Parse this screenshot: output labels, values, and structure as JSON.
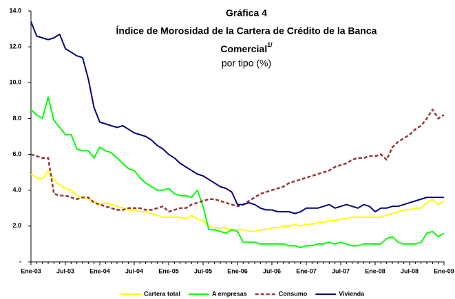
{
  "chart_data": {
    "type": "line",
    "title": "Gráfica 4",
    "title_lines": [
      "Índice de Morosidad de la Cartera de Crédito de la Banca",
      "Comercial"
    ],
    "title_note": "1/",
    "subtitle": "por tipo (%)",
    "categories": [
      "Ene-03",
      null,
      null,
      null,
      null,
      null,
      "Jul-03",
      null,
      null,
      null,
      null,
      null,
      "Ene-04",
      null,
      null,
      null,
      null,
      null,
      "Jul-04",
      null,
      null,
      null,
      null,
      null,
      "Ene-05",
      null,
      null,
      null,
      null,
      null,
      "Jul-05",
      null,
      null,
      null,
      null,
      null,
      "Ene-06",
      null,
      null,
      null,
      null,
      null,
      "Jul-06",
      null,
      null,
      null,
      null,
      null,
      "Ene-07",
      null,
      null,
      null,
      null,
      null,
      "Jul-07",
      null,
      null,
      null,
      null,
      null,
      "Ene-08",
      null,
      null,
      null,
      null,
      null,
      "Jul-08",
      null,
      null,
      null,
      null,
      null,
      "Ene-09"
    ],
    "series": [
      {
        "name": "Cartera total",
        "color": "#ffff00",
        "dash": false,
        "values": [
          4.9,
          4.7,
          4.6,
          5.1,
          4.6,
          4.3,
          4.1,
          4.0,
          3.7,
          3.6,
          3.5,
          3.4,
          3.2,
          3.3,
          3.2,
          3.1,
          3.0,
          2.9,
          2.9,
          2.8,
          2.8,
          2.7,
          2.6,
          2.5,
          2.5,
          2.5,
          2.5,
          2.4,
          2.6,
          2.4,
          2.3,
          2.0,
          1.9,
          1.9,
          1.9,
          1.8,
          1.8,
          1.8,
          1.7,
          1.7,
          1.8,
          1.8,
          1.9,
          1.9,
          2.0,
          2.0,
          2.1,
          2.0,
          2.1,
          2.1,
          2.2,
          2.2,
          2.3,
          2.3,
          2.4,
          2.4,
          2.5,
          2.5,
          2.5,
          2.5,
          2.5,
          2.5,
          2.6,
          2.7,
          2.8,
          2.9,
          2.9,
          3.0,
          3.0,
          3.3,
          3.5,
          3.2,
          3.4
        ]
      },
      {
        "name": "A empresas",
        "color": "#00ff00",
        "dash": false,
        "values": [
          8.5,
          8.2,
          8.0,
          9.2,
          7.9,
          7.5,
          7.1,
          7.1,
          6.3,
          6.2,
          6.2,
          5.8,
          6.4,
          6.2,
          6.1,
          5.8,
          5.5,
          5.2,
          5.1,
          4.7,
          4.4,
          4.2,
          4.0,
          4.0,
          4.1,
          3.8,
          3.7,
          3.7,
          3.6,
          4.0,
          3.1,
          1.8,
          1.8,
          1.7,
          1.6,
          1.8,
          1.7,
          1.1,
          1.1,
          1.1,
          1.0,
          1.0,
          1.0,
          1.0,
          1.0,
          0.9,
          0.9,
          0.8,
          0.9,
          0.9,
          1.0,
          1.0,
          1.1,
          1.0,
          1.1,
          1.0,
          0.9,
          0.9,
          1.0,
          1.0,
          1.0,
          1.0,
          1.3,
          1.4,
          1.1,
          1.0,
          1.0,
          1.0,
          1.1,
          1.6,
          1.7,
          1.4,
          1.6
        ]
      },
      {
        "name": "Consumo",
        "color": "#993333",
        "dash": true,
        "values": [
          6.0,
          5.9,
          5.8,
          5.8,
          3.8,
          3.7,
          3.7,
          3.6,
          3.5,
          3.6,
          3.6,
          3.3,
          3.2,
          3.1,
          3.0,
          2.9,
          2.9,
          3.0,
          3.0,
          3.0,
          2.9,
          2.9,
          3.0,
          3.1,
          2.8,
          2.9,
          3.0,
          3.0,
          3.2,
          3.3,
          3.4,
          3.5,
          3.5,
          3.4,
          3.3,
          3.2,
          3.1,
          3.2,
          3.4,
          3.6,
          3.8,
          3.9,
          4.0,
          4.1,
          4.2,
          4.4,
          4.5,
          4.6,
          4.7,
          4.8,
          4.9,
          5.0,
          5.1,
          5.3,
          5.4,
          5.5,
          5.7,
          5.8,
          5.8,
          5.9,
          5.9,
          6.0,
          5.7,
          6.4,
          6.7,
          6.9,
          7.1,
          7.4,
          7.6,
          8.0,
          8.5,
          8.0,
          8.2
        ]
      },
      {
        "name": "Vivienda",
        "color": "#000080",
        "dash": false,
        "values": [
          13.4,
          12.6,
          12.5,
          12.4,
          12.5,
          12.7,
          11.9,
          11.7,
          11.5,
          11.4,
          10.2,
          8.6,
          7.8,
          7.7,
          7.6,
          7.5,
          7.6,
          7.4,
          7.2,
          7.1,
          7.0,
          6.8,
          6.5,
          6.3,
          6.0,
          5.8,
          5.5,
          5.3,
          5.1,
          4.9,
          4.8,
          4.6,
          4.4,
          4.2,
          4.1,
          3.9,
          3.2,
          3.2,
          3.3,
          3.2,
          3.0,
          2.9,
          2.9,
          2.8,
          2.8,
          2.8,
          2.7,
          2.8,
          3.0,
          3.0,
          3.0,
          3.1,
          3.2,
          3.0,
          3.1,
          3.2,
          3.1,
          3.0,
          3.2,
          3.1,
          2.8,
          3.0,
          3.0,
          3.1,
          3.1,
          3.2,
          3.3,
          3.4,
          3.5,
          3.6,
          3.6,
          3.6,
          3.6
        ]
      }
    ],
    "ylim": [
      0,
      14
    ],
    "yticks": [
      {
        "value": 0,
        "label": "-"
      },
      {
        "value": 2,
        "label": "2.0"
      },
      {
        "value": 4,
        "label": "4.0"
      },
      {
        "value": 6,
        "label": "6.0"
      },
      {
        "value": 8,
        "label": "8.0"
      },
      {
        "value": 10,
        "label": "10.0"
      },
      {
        "value": 12,
        "label": "12.0"
      },
      {
        "value": 14,
        "label": "14.0"
      }
    ],
    "grid": false,
    "legend": "bottom"
  }
}
